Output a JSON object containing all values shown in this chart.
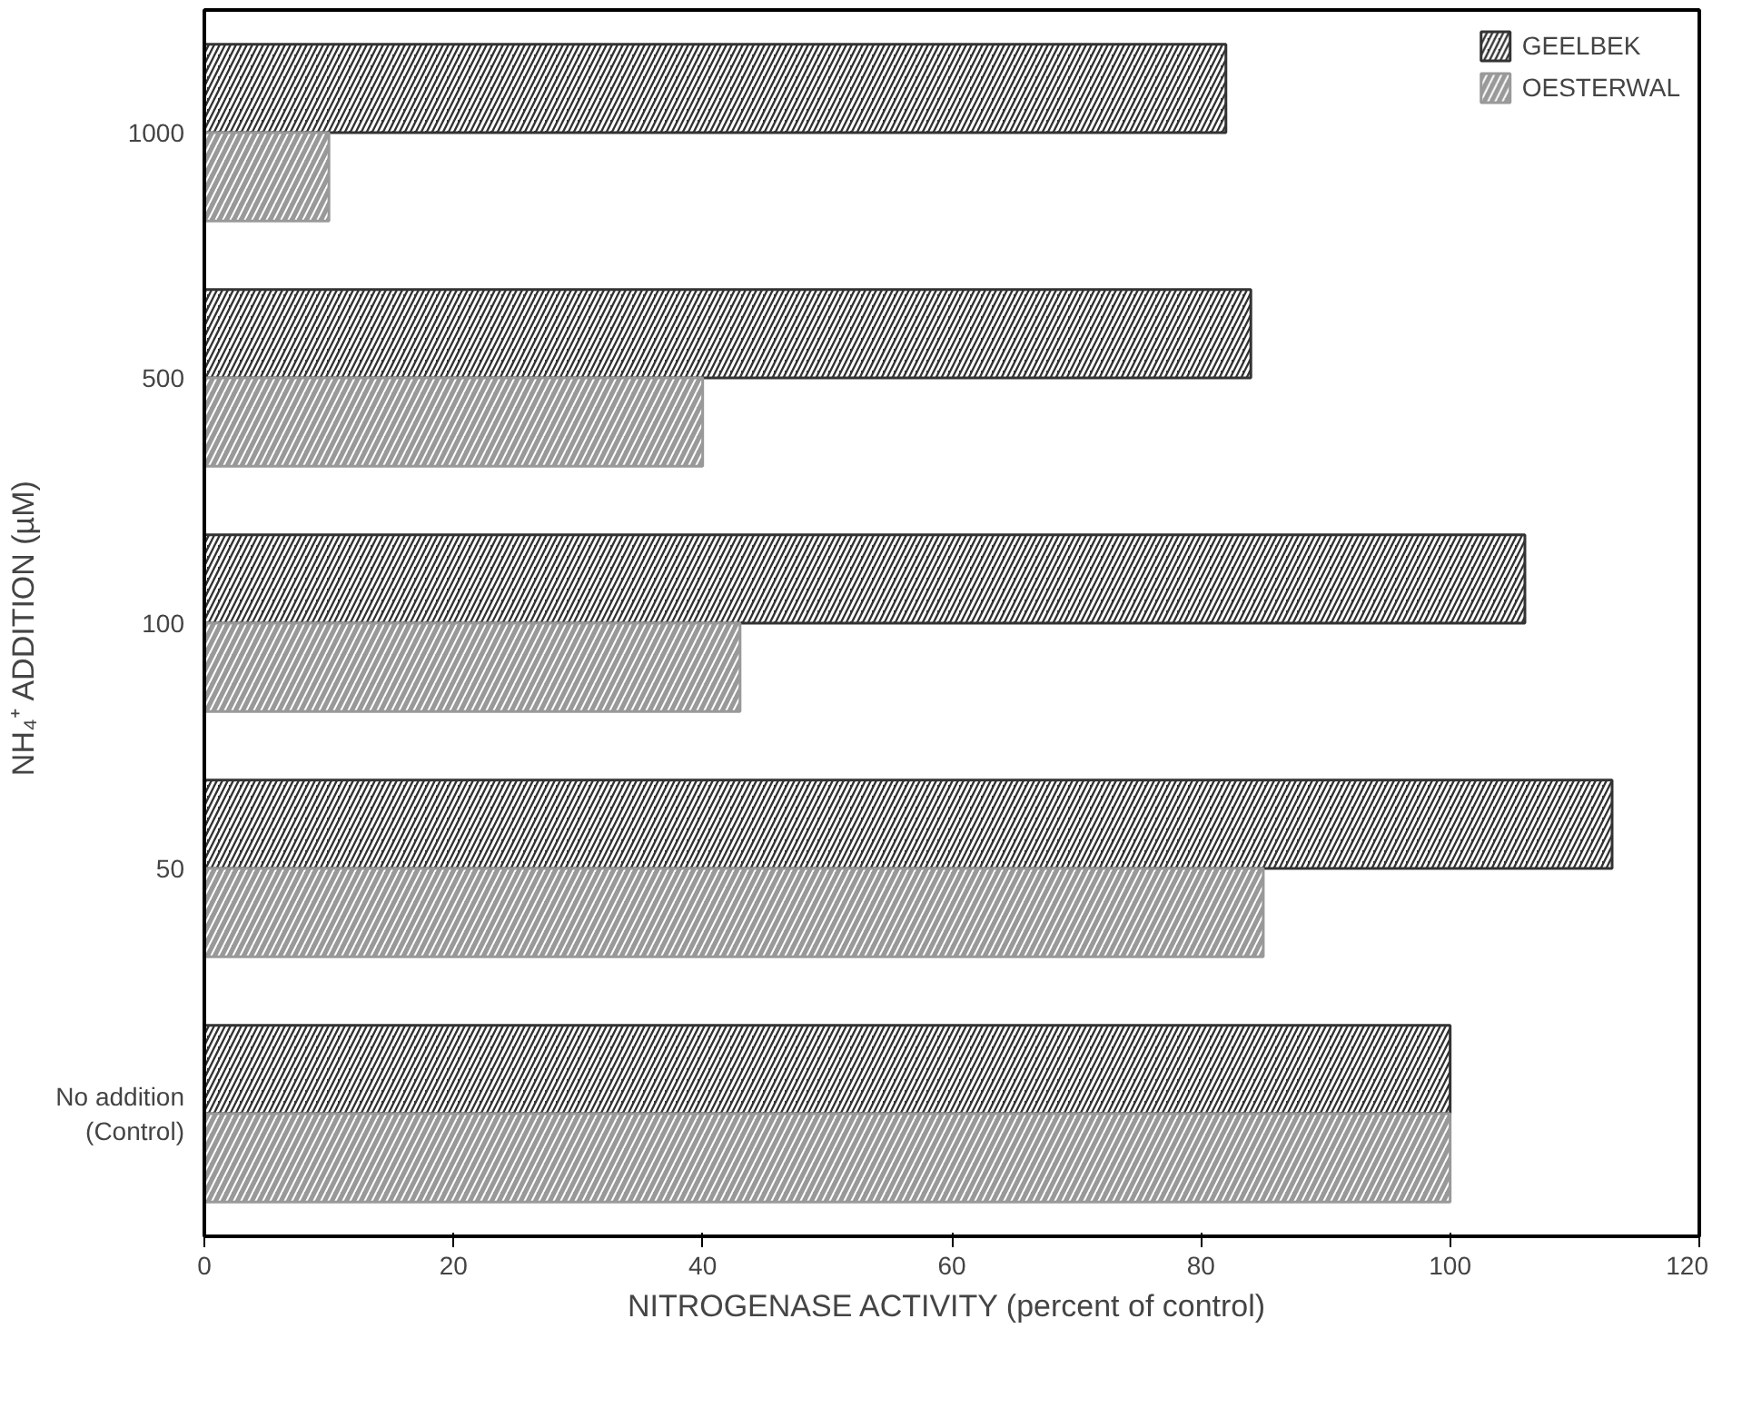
{
  "chart_data": {
    "type": "bar",
    "orientation": "horizontal",
    "xlabel": "NITROGENASE ACTIVITY  (percent of control)",
    "ylabel": "NH₄⁺ ADDITION  (µM)",
    "categories": [
      "1000",
      "500",
      "100",
      "50",
      "No addition\n(Control)"
    ],
    "series": [
      {
        "name": "GEELBEK",
        "color": "#333333",
        "values": [
          82,
          84,
          106,
          113,
          100
        ]
      },
      {
        "name": "OESTERWAL",
        "color": "#999999",
        "values": [
          10,
          40,
          43,
          85,
          100
        ]
      }
    ],
    "xlim": [
      0,
      120
    ],
    "xticks": [
      0,
      20,
      40,
      60,
      80,
      100,
      120
    ],
    "grid": false,
    "legend": "top right"
  }
}
